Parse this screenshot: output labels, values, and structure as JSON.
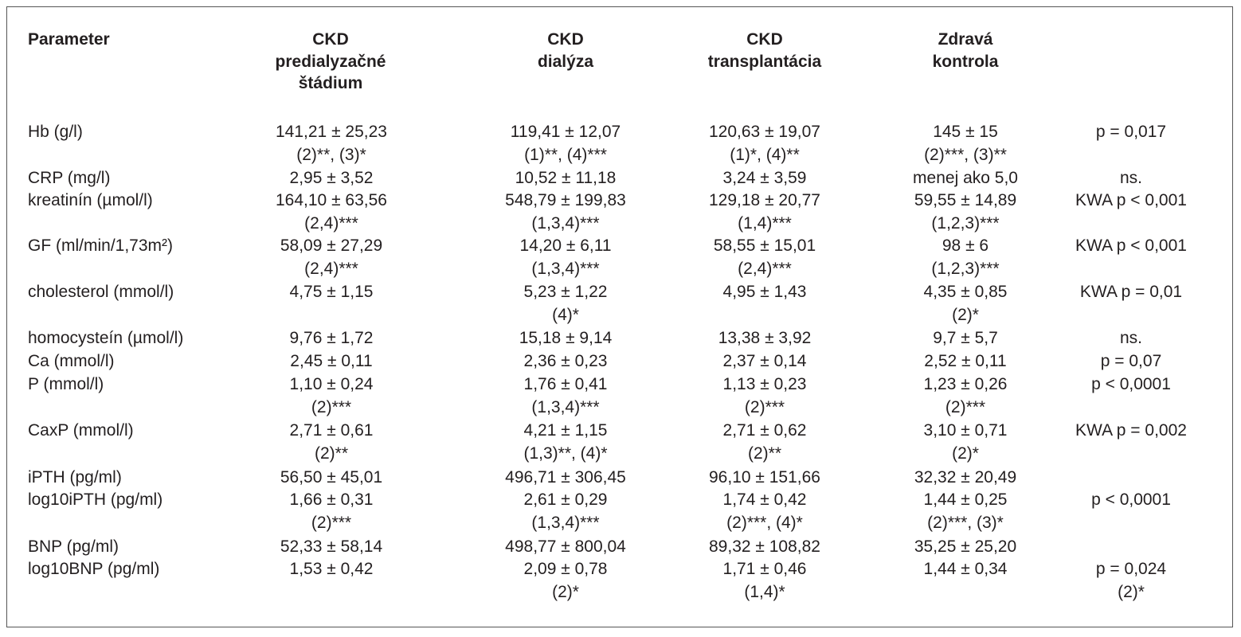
{
  "headers": {
    "parameter": "Parameter",
    "col1": [
      "CKD",
      "predialyzačné",
      "štádium"
    ],
    "col2": [
      "CKD",
      "dialýza"
    ],
    "col3": [
      "CKD",
      "transplantácia"
    ],
    "col4": [
      "Zdravá",
      "kontrola"
    ]
  },
  "rows": [
    {
      "param": "Hb (g/l)",
      "c1": [
        "141,21 ± 25,23",
        "(2)**, (3)*"
      ],
      "c2": [
        "119,41 ± 12,07",
        "(1)**, (4)***"
      ],
      "c3": [
        "120,63 ± 19,07",
        "(1)*, (4)**"
      ],
      "c4": [
        "145 ± 15",
        "(2)***, (3)**"
      ],
      "p": [
        "p = 0,017"
      ]
    },
    {
      "param": "CRP (mg/l)",
      "c1": [
        "2,95 ± 3,52"
      ],
      "c2": [
        "10,52 ± 11,18"
      ],
      "c3": [
        "3,24 ± 3,59"
      ],
      "c4": [
        "menej ako 5,0"
      ],
      "p": [
        "ns."
      ]
    },
    {
      "param": "kreatinín (µmol/l)",
      "c1": [
        "164,10 ± 63,56",
        "(2,4)***"
      ],
      "c2": [
        "548,79 ± 199,83",
        "(1,3,4)***"
      ],
      "c3": [
        "129,18 ± 20,77",
        "(1,4)***"
      ],
      "c4": [
        "59,55 ± 14,89",
        "(1,2,3)***"
      ],
      "p": [
        "KWA p < 0,001"
      ]
    },
    {
      "param": "GF (ml/min/1,73m²)",
      "c1": [
        "58,09 ± 27,29",
        "(2,4)***"
      ],
      "c2": [
        "14,20 ± 6,11",
        "(1,3,4)***"
      ],
      "c3": [
        "58,55 ± 15,01",
        "(2,4)***"
      ],
      "c4": [
        "98 ± 6",
        "(1,2,3)***"
      ],
      "p": [
        "KWA p < 0,001"
      ]
    },
    {
      "param": "cholesterol (mmol/l)",
      "c1": [
        "4,75 ± 1,15"
      ],
      "c2": [
        "5,23 ± 1,22",
        "(4)*"
      ],
      "c3": [
        "4,95 ± 1,43"
      ],
      "c4": [
        "4,35 ± 0,85",
        "(2)*"
      ],
      "p": [
        "KWA p = 0,01"
      ]
    },
    {
      "param": "homocysteín (µmol/l)",
      "c1": [
        "9,76 ± 1,72"
      ],
      "c2": [
        "15,18 ± 9,14"
      ],
      "c3": [
        "13,38 ± 3,92"
      ],
      "c4": [
        "9,7 ± 5,7"
      ],
      "p": [
        "ns."
      ]
    },
    {
      "param": "Ca (mmol/l)",
      "c1": [
        "2,45 ± 0,11"
      ],
      "c2": [
        "2,36 ± 0,23"
      ],
      "c3": [
        "2,37 ± 0,14"
      ],
      "c4": [
        "2,52 ± 0,11"
      ],
      "p": [
        "p = 0,07"
      ]
    },
    {
      "param": "P (mmol/l)",
      "c1": [
        "1,10 ± 0,24",
        "(2)***"
      ],
      "c2": [
        "1,76 ± 0,41",
        "(1,3,4)***"
      ],
      "c3": [
        "1,13 ± 0,23",
        "(2)***"
      ],
      "c4": [
        "1,23 ± 0,26",
        "(2)***"
      ],
      "p": [
        "p < 0,0001"
      ]
    },
    {
      "param": "CaxP (mmol/l)",
      "c1": [
        "2,71 ± 0,61",
        "(2)**"
      ],
      "c2": [
        "4,21 ± 1,15",
        "(1,3)**, (4)*"
      ],
      "c3": [
        "2,71 ± 0,62",
        "(2)**"
      ],
      "c4": [
        "3,10 ± 0,71",
        "(2)*"
      ],
      "p": [
        "KWA p = 0,002"
      ]
    },
    {
      "param": "iPTH (pg/ml)",
      "c1": [
        "56,50 ± 45,01"
      ],
      "c2": [
        "496,71 ± 306,45"
      ],
      "c3": [
        "96,10 ± 151,66"
      ],
      "c4": [
        "32,32 ± 20,49"
      ],
      "p": []
    },
    {
      "param": "log10iPTH  (pg/ml)",
      "c1": [
        "1,66 ± 0,31",
        "(2)***"
      ],
      "c2": [
        "2,61 ± 0,29",
        "(1,3,4)***"
      ],
      "c3": [
        "1,74 ± 0,42",
        "(2)***, (4)*"
      ],
      "c4": [
        "1,44 ± 0,25",
        "(2)***, (3)*"
      ],
      "p": [
        "p < 0,0001"
      ]
    },
    {
      "param": "BNP (pg/ml)",
      "c1": [
        "52,33 ± 58,14"
      ],
      "c2": [
        "498,77 ± 800,04"
      ],
      "c3": [
        "89,32 ± 108,82"
      ],
      "c4": [
        "35,25 ± 25,20"
      ],
      "p": []
    },
    {
      "param": "log10BNP (pg/ml)",
      "c1": [
        "1,53 ± 0,42"
      ],
      "c2": [
        "2,09 ± 0,78",
        "(2)*"
      ],
      "c3": [
        "1,71 ± 0,46",
        "(1,4)*"
      ],
      "c4": [
        "1,44 ± 0,34"
      ],
      "p": [
        "p = 0,024",
        "(2)*"
      ]
    }
  ]
}
